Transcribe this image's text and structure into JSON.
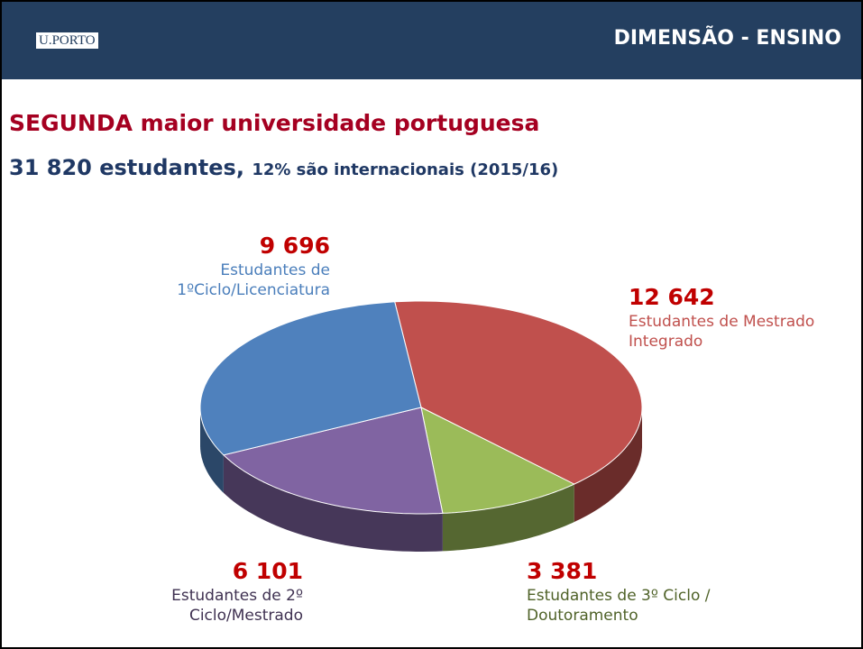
{
  "header": {
    "logo": "U.PORTO",
    "section": "DIMENSÃO - ENSINO"
  },
  "chart_data": {
    "type": "pie",
    "title": "SEGUNDA maior universidade portuguesa",
    "subtitle": [
      "31 820 estudantes,",
      "12% são internacionais (2015/16)"
    ],
    "categories": [
      "Estudantes de Mestrado Integrado",
      "Estudantes de 3º Ciclo / Doutoramento",
      "Estudantes de 2º Ciclo/Mestrado",
      "Estudantes de 1ºCiclo/Licenciatura"
    ],
    "values": [
      12642,
      3381,
      6101,
      9696
    ],
    "value_labels": [
      "12 642",
      "3 381",
      "6 101",
      "9 696"
    ],
    "colors": [
      "#c0504d",
      "#9bbb59",
      "#8064a2",
      "#4f81bd"
    ]
  }
}
